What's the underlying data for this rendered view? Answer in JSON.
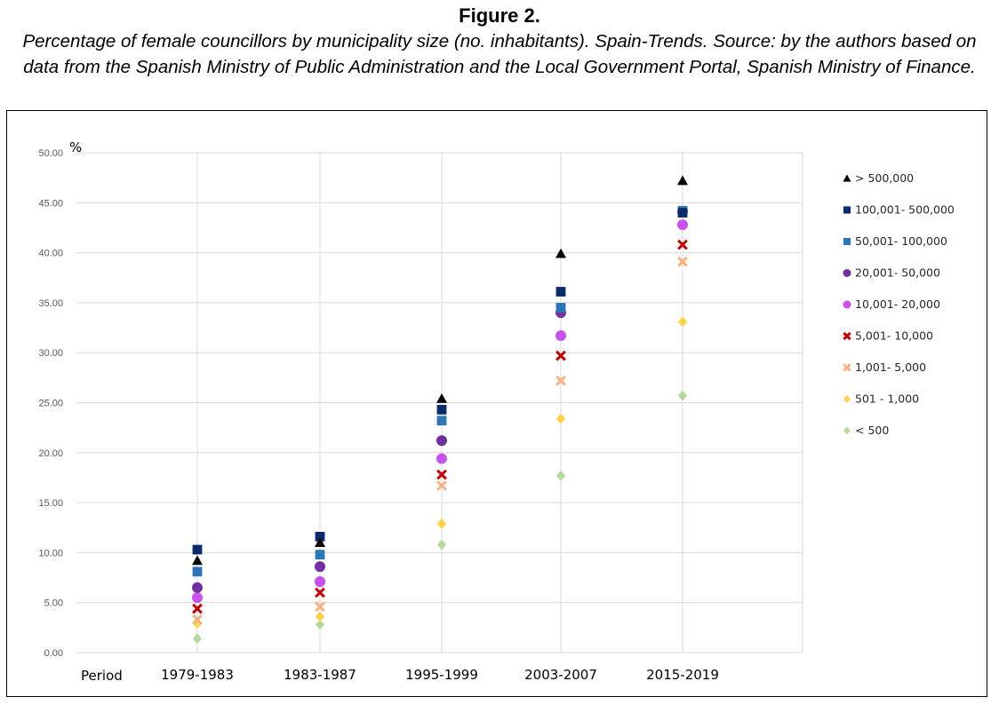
{
  "figure": {
    "title": "Figure 2.",
    "caption": "Percentage of female councillors by municipality size (no. inhabitants). Spain-Trends. Source: by the authors based on data from the Spanish Ministry of Public Administration and the Local Government Portal, Spanish Ministry of Finance."
  },
  "chart_data": {
    "type": "scatter",
    "ylabel": "%",
    "xlabel": "Period",
    "ylim": [
      0,
      50
    ],
    "yticks": [
      "0.00",
      "5.00",
      "10.00",
      "15.00",
      "20.00",
      "25.00",
      "30.00",
      "35.00",
      "40.00",
      "45.00",
      "50.00"
    ],
    "grid": true,
    "legend_position": "right",
    "categories": [
      "1979-1983",
      "1983-1987",
      "1995-1999",
      "2003-2007",
      "2015-2019"
    ],
    "series": [
      {
        "name": "> 500,000",
        "marker": "triangle",
        "color": "#000000",
        "values": [
          9.2,
          11.0,
          25.4,
          39.9,
          47.2
        ]
      },
      {
        "name": "100,001- 500,000",
        "marker": "square",
        "color": "#0b2a6b",
        "values": [
          10.3,
          11.6,
          24.3,
          36.1,
          44.0
        ]
      },
      {
        "name": "50,001- 100,000",
        "marker": "square",
        "color": "#2e75b6",
        "values": [
          8.1,
          9.8,
          23.2,
          34.5,
          44.2
        ]
      },
      {
        "name": "20,001- 50,000",
        "marker": "circle",
        "color": "#7030a0",
        "values": [
          6.5,
          8.6,
          21.2,
          34.0,
          44.1
        ]
      },
      {
        "name": "10,001- 20,000",
        "marker": "circle",
        "color": "#c84ff0",
        "values": [
          5.5,
          7.1,
          19.4,
          31.7,
          42.8
        ]
      },
      {
        "name": "5,001- 10,000",
        "marker": "x",
        "color": "#c00000",
        "values": [
          4.4,
          6.0,
          17.8,
          29.7,
          40.8
        ]
      },
      {
        "name": "1,001- 5,000",
        "marker": "x",
        "color": "#f4b183",
        "values": [
          3.3,
          4.6,
          16.7,
          27.2,
          39.1
        ]
      },
      {
        "name": "501 - 1,000",
        "marker": "diamond",
        "color": "#ffd24d",
        "values": [
          2.9,
          3.6,
          12.9,
          23.4,
          33.1
        ]
      },
      {
        "name": "< 500",
        "marker": "diamond",
        "color": "#b5d89c",
        "values": [
          1.4,
          2.8,
          10.8,
          17.7,
          25.7
        ]
      }
    ]
  }
}
